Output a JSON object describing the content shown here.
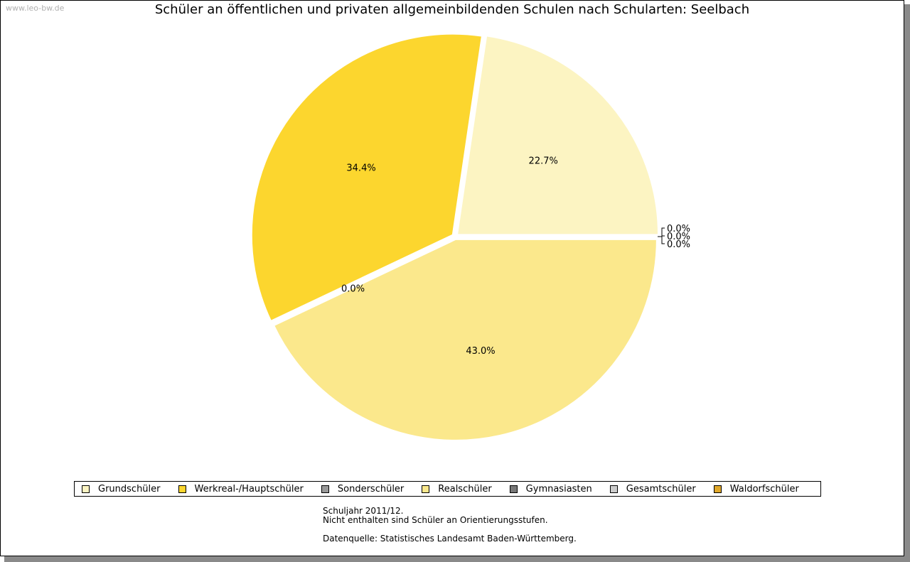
{
  "watermark": "www.leo-bw.de",
  "chart_data": {
    "type": "pie",
    "title": "Schüler an öffentlichen und privaten allgemeinbildenden Schulen nach Schularten: Seelbach",
    "slices": [
      {
        "label": "Grundschüler",
        "value": 22.7,
        "display": "22.7%",
        "color": "#fcf4c2"
      },
      {
        "label": "Werkreal-/Hauptschüler",
        "value": 34.4,
        "display": "34.4%",
        "color": "#fcd62e"
      },
      {
        "label": "Sonderschüler",
        "value": 0.0,
        "display": "0.0%",
        "color": "#999999"
      },
      {
        "label": "Realschüler",
        "value": 43.0,
        "display": "43.0%",
        "color": "#fbe88c"
      },
      {
        "label": "Gymnasiasten",
        "value": 0.0,
        "display": "0.0%",
        "color": "#777777"
      },
      {
        "label": "Gesamtschüler",
        "value": 0.0,
        "display": "0.0%",
        "color": "#cccccc"
      },
      {
        "label": "Waldorfschüler",
        "value": 0.0,
        "display": "0.0%",
        "color": "#e0a82a"
      }
    ],
    "legend_position": "bottom"
  },
  "notes": {
    "line1": "Schuljahr 2011/12.",
    "line2": "Nicht enthalten sind Schüler an Orientierungsstufen.",
    "line3": "Datenquelle: Statistisches Landesamt Baden-Württemberg."
  }
}
